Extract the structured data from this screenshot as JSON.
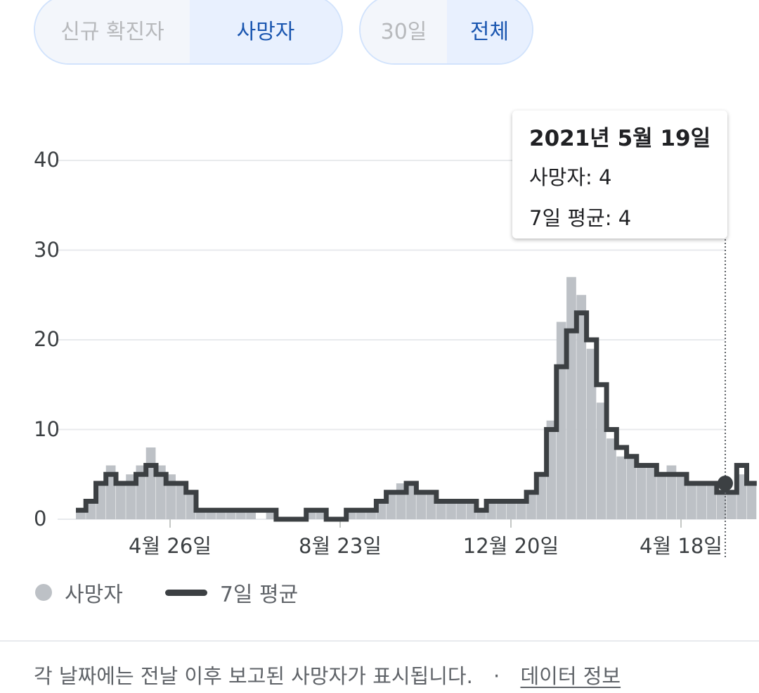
{
  "toggles": {
    "metric": [
      {
        "label": "신규 확진자",
        "active": false
      },
      {
        "label": "사망자",
        "active": true
      }
    ],
    "range": [
      {
        "label": "30일",
        "active": false
      },
      {
        "label": "전체",
        "active": true
      }
    ]
  },
  "tooltip": {
    "date": "2021년 5월 19일",
    "deaths_line": "사망자: 4",
    "avg_line": "7일 평균: 4"
  },
  "legend": {
    "daily": "사망자",
    "average": "7일 평균"
  },
  "footer": {
    "note": "각 날짜에는 전날 이후 보고된 사망자가 표시됩니다.",
    "separator": "·",
    "link": "데이터 정보"
  },
  "colors": {
    "bars": "#bdc1c6",
    "line": "#3c4043",
    "grid": "#e8eaed",
    "active_toggle_text": "#1a56b0",
    "active_toggle_bg": "#e8f0fe"
  },
  "chart_data": {
    "type": "bar",
    "ylim": [
      0,
      40
    ],
    "yticks": [
      "0",
      "10",
      "20",
      "30",
      "40"
    ],
    "xticks": [
      "4월 26일",
      "8월 23일",
      "12월 20일",
      "4월 18일"
    ],
    "grid": true,
    "legend_position": "bottom-left",
    "x_range": [
      "2020-02-20",
      "2021-05-19"
    ],
    "series": [
      {
        "name": "사망자",
        "type": "bar",
        "interval_days": 7,
        "values": [
          1,
          2,
          4,
          6,
          4,
          5,
          6,
          8,
          6,
          5,
          4,
          3,
          1,
          1,
          1,
          1,
          1,
          1,
          0,
          1,
          0,
          0,
          0,
          1,
          1,
          0,
          0,
          1,
          1,
          1,
          2,
          3,
          4,
          4,
          3,
          3,
          2,
          2,
          2,
          2,
          1,
          2,
          2,
          2,
          2,
          3,
          5,
          11,
          22,
          27,
          25,
          19,
          13,
          9,
          7,
          7,
          6,
          6,
          5,
          6,
          5,
          4,
          4,
          4,
          3,
          3,
          5,
          4
        ]
      },
      {
        "name": "7일 평균",
        "type": "line",
        "interval_days": 7,
        "values": [
          1,
          2,
          4,
          5,
          4,
          4,
          5,
          6,
          5,
          4,
          4,
          3,
          1,
          1,
          1,
          1,
          1,
          1,
          1,
          1,
          0,
          0,
          0,
          1,
          1,
          0,
          0,
          1,
          1,
          1,
          2,
          3,
          3,
          4,
          3,
          3,
          2,
          2,
          2,
          2,
          1,
          2,
          2,
          2,
          2,
          3,
          5,
          10,
          17,
          21,
          23,
          20,
          15,
          10,
          8,
          7,
          6,
          6,
          5,
          5,
          5,
          4,
          4,
          4,
          3,
          3,
          6,
          4
        ]
      }
    ],
    "highlight": {
      "date": "2021-05-19",
      "value": 4
    }
  }
}
